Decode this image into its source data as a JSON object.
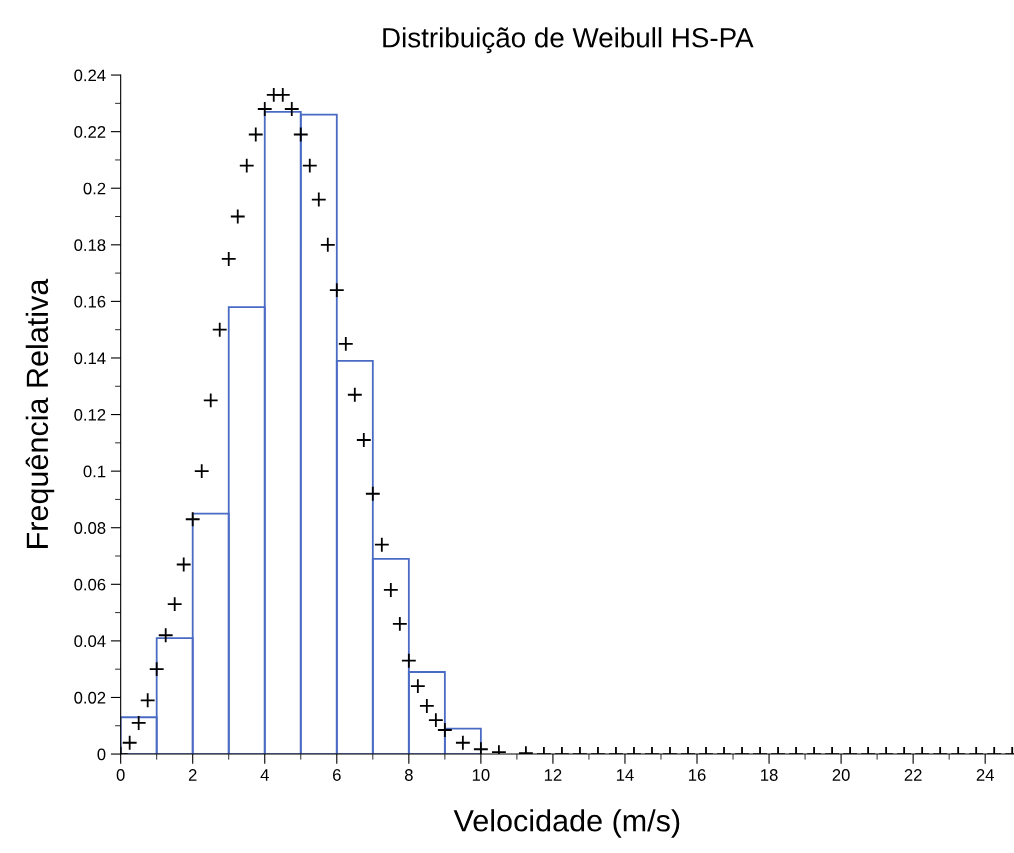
{
  "chart_data": {
    "type": "histogram",
    "title": "Distribuição de Weibull HS-PA",
    "xlabel": "Velocidade (m/s)",
    "ylabel": "Frequência Relativa",
    "bins": [
      0,
      1,
      2,
      3,
      4,
      5,
      6,
      7,
      8,
      9,
      10
    ],
    "series": [
      {
        "color": "#4a6bc4",
        "values": [
          0.013,
          0.041,
          0.085,
          0.158,
          0.227,
          0.226,
          0.139,
          0.069,
          0.029,
          0.009
        ]
      },
      {
        "type": "scatter",
        "color": "#000000",
        "marker": "cross",
        "x": [
          0,
          0.25,
          0.5,
          0.75,
          1.0,
          1.25,
          1.5,
          1.75,
          2.0,
          2.25,
          2.5,
          2.75,
          3.0,
          3.25,
          3.5,
          3.75,
          4.0,
          4.25,
          4.5,
          4.75,
          5.0,
          5.25,
          5.5,
          5.75,
          6.0,
          6.25,
          6.5,
          6.75,
          7.0,
          7.25,
          7.5,
          7.75,
          8.0,
          8.25,
          8.5,
          8.75,
          9.0,
          9.5,
          10.0,
          10.5,
          11.25,
          11.75,
          12.25,
          12.75,
          13.25,
          13.75,
          14.25,
          14.75,
          15.25,
          15.75,
          16.25,
          16.75,
          17.25,
          17.75,
          18.25,
          18.75,
          19.25,
          19.75,
          20.25,
          20.75,
          21.25,
          21.75,
          22.25,
          22.75,
          23.25,
          23.75,
          24.25,
          24.75
        ],
        "values": [
          0,
          0.004,
          0.011,
          0.019,
          0.03,
          0.042,
          0.053,
          0.067,
          0.083,
          0.1,
          0.125,
          0.15,
          0.175,
          0.19,
          0.208,
          0.219,
          0.228,
          0.233,
          0.233,
          0.228,
          0.219,
          0.208,
          0.196,
          0.18,
          0.164,
          0.145,
          0.127,
          0.111,
          0.092,
          0.074,
          0.058,
          0.046,
          0.033,
          0.024,
          0.017,
          0.012,
          0.0085,
          0.004,
          0.0017,
          0.0007,
          0.0003,
          0,
          0,
          0,
          0,
          0,
          0,
          0,
          0,
          0,
          0,
          0,
          0,
          0,
          0,
          0,
          0,
          0,
          0,
          0,
          0,
          0,
          0,
          0,
          0,
          0,
          0,
          0
        ]
      }
    ],
    "xlim": [
      0,
      24.8
    ],
    "ylim": [
      0,
      0.24
    ],
    "xticks": [
      0,
      {
        "value": 1,
        "label": null
      },
      2,
      {
        "value": 3,
        "label": null
      },
      4,
      {
        "value": 5,
        "label": null
      },
      6,
      {
        "value": 7,
        "label": null
      },
      8,
      {
        "value": 9,
        "label": null
      },
      10,
      {
        "value": 11,
        "label": null
      },
      12,
      {
        "value": 13,
        "label": null
      },
      14,
      {
        "value": 15,
        "label": null
      },
      16,
      {
        "value": 17,
        "label": null
      },
      18,
      {
        "value": 19,
        "label": null
      },
      20,
      {
        "value": 21,
        "label": null
      },
      22,
      {
        "value": 23,
        "label": null
      },
      24
    ],
    "yticks": [
      0,
      {
        "value": 0.01,
        "label": null
      },
      0.02,
      {
        "value": 0.03,
        "label": null
      },
      0.04,
      {
        "value": 0.05,
        "label": null
      },
      0.06,
      {
        "value": 0.07,
        "label": null
      },
      0.08,
      {
        "value": 0.09,
        "label": null
      },
      0.1,
      {
        "value": 0.11,
        "label": null
      },
      0.12,
      {
        "value": 0.13,
        "label": null
      },
      0.14,
      {
        "value": 0.15,
        "label": null
      },
      0.16,
      {
        "value": 0.17,
        "label": null
      },
      0.18,
      {
        "value": 0.19,
        "label": null
      },
      0.2,
      {
        "value": 0.21,
        "label": null
      },
      0.22,
      {
        "value": 0.23,
        "label": null
      },
      0.24
    ],
    "grid": false,
    "legend": false
  }
}
